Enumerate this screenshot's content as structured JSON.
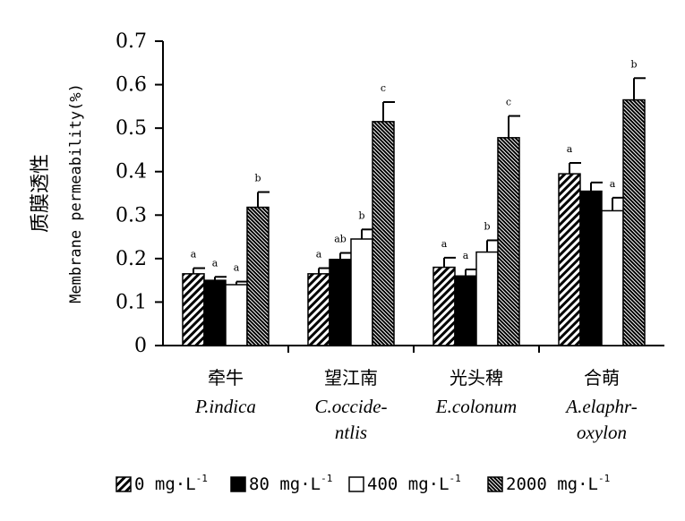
{
  "chart_data": {
    "type": "bar",
    "title": "",
    "ylabel_lines": [
      "质膜透性",
      "Membrane permeability(%)"
    ],
    "ylim": [
      0,
      0.7
    ],
    "yticks": [
      "0",
      "0.1",
      "0.2",
      "0.3",
      "0.4",
      "0.5",
      "0.6",
      "0.7"
    ],
    "grid": false,
    "legend_position": "bottom",
    "categories": [
      {
        "cn": "牵牛",
        "latin": [
          "P.indica"
        ]
      },
      {
        "cn": "望江南",
        "latin": [
          "C.occide-",
          "ntlis"
        ]
      },
      {
        "cn": "光头稗",
        "latin": [
          "E.colonum"
        ]
      },
      {
        "cn": "合萌",
        "latin": [
          "A.elaphr-",
          "oxylon"
        ]
      }
    ],
    "series": [
      {
        "name": "0 mg·L",
        "sup": "-1",
        "pattern": "hatch-light",
        "values": [
          0.165,
          0.165,
          0.18,
          0.395
        ],
        "errors": [
          0.013,
          0.013,
          0.022,
          0.025
        ],
        "labels": [
          "a",
          "a",
          "a",
          "a"
        ]
      },
      {
        "name": "80 mg·L",
        "sup": "-1",
        "pattern": "solid-black",
        "values": [
          0.15,
          0.198,
          0.16,
          0.355
        ],
        "errors": [
          0.008,
          0.015,
          0.015,
          0.02
        ],
        "labels": [
          "a",
          "ab",
          "a",
          ""
        ]
      },
      {
        "name": "400 mg·L",
        "sup": "-1",
        "pattern": "white",
        "values": [
          0.14,
          0.245,
          0.215,
          0.31
        ],
        "errors": [
          0.007,
          0.022,
          0.027,
          0.03
        ],
        "labels": [
          "a",
          "b",
          "b",
          "a"
        ]
      },
      {
        "name": "2000 mg·L",
        "sup": "-1",
        "pattern": "hatch-dense",
        "values": [
          0.318,
          0.515,
          0.478,
          0.565
        ],
        "errors": [
          0.035,
          0.045,
          0.05,
          0.05
        ],
        "labels": [
          "b",
          "c",
          "c",
          "b"
        ]
      }
    ]
  }
}
